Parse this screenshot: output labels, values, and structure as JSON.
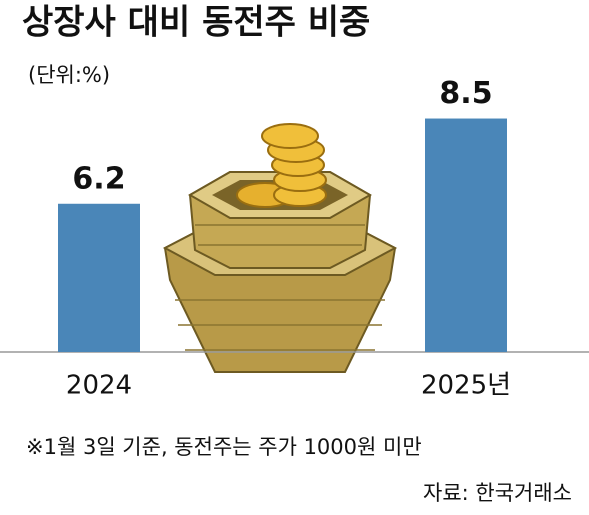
{
  "chart_data": {
    "type": "bar",
    "title": "상장사 대비 동전주 비중",
    "subtitle": "(단위:%)",
    "categories": [
      "2024",
      "2025년"
    ],
    "values": [
      6.2,
      8.5
    ],
    "color": "#4a86b8",
    "ylim": [
      2.2,
      9.0
    ],
    "note": "※1월 3일 기준, 동전주는 주가 1000원 미만",
    "source": "자료: 한국거래소"
  }
}
